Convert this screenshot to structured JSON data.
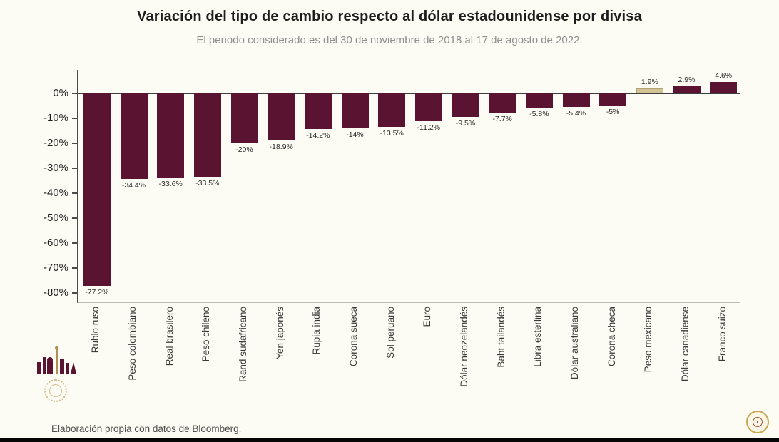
{
  "header": {
    "title": "Variación del tipo de cambio respecto al dólar estadounidense por divisa",
    "subtitle": "El periodo considerado es del 30 de noviembre de 2018 al 17 de agosto de 2022."
  },
  "footer": {
    "source": "Elaboración propia con datos de Bloomberg."
  },
  "icons": {
    "left_logo": "mexico-government-skyline-logo",
    "left_seal": "mexico-official-seal",
    "right_seal": "gold-circular-seal"
  },
  "chart_data": {
    "type": "bar",
    "title": "Variación del tipo de cambio respecto al dólar estadounidense por divisa",
    "xlabel": "",
    "ylabel": "",
    "grid": false,
    "legend": false,
    "ylim": [
      -84,
      9.4
    ],
    "ytick_values": [
      0,
      -10,
      -20,
      -30,
      -40,
      -50,
      -60,
      -70,
      -80
    ],
    "ytick_labels": [
      "0%",
      "-10%",
      "-20%",
      "-30%",
      "-40%",
      "-50%",
      "-60%",
      "-70%",
      "-80%"
    ],
    "categories": [
      "Rublo ruso",
      "Peso colombiano",
      "Real brasilero",
      "Peso chileno",
      "Rand sudafricano",
      "Yen japonés",
      "Rupia india",
      "Corona sueca",
      "Sol peruano",
      "Euro",
      "Dólar neozelandés",
      "Baht tailandés",
      "Libra esterlina",
      "Dólar australiano",
      "Corona checa",
      "Peso mexicano",
      "Dólar canadiense",
      "Franco suizo"
    ],
    "values": [
      -77.2,
      -34.4,
      -33.6,
      -33.5,
      -20,
      -18.9,
      -14.2,
      -14,
      -13.5,
      -11.2,
      -9.5,
      -7.7,
      -5.8,
      -5.4,
      -5,
      1.9,
      2.9,
      4.6
    ],
    "value_labels": [
      "-77.2%",
      "-34.4%",
      "-33.6%",
      "-33.5%",
      "-20%",
      "-18.9%",
      "-14.2%",
      "-14%",
      "-13.5%",
      "-11.2%",
      "-9.5%",
      "-7.7%",
      "-5.8%",
      "-5.4%",
      "-5%",
      "1.9%",
      "2.9%",
      "4.6%"
    ],
    "bar_color": "#5a1432",
    "highlight_color": "#d2c394",
    "highlight_border": "#b3a276",
    "highlight_index": 15
  }
}
